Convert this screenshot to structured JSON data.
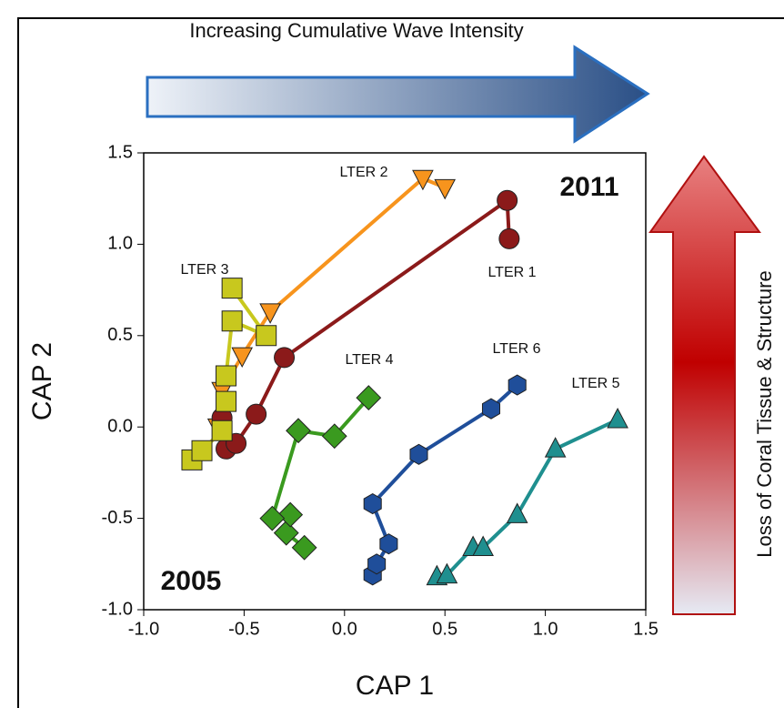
{
  "chart_data": {
    "type": "line",
    "xlabel": "CAP 1",
    "ylabel": "CAP 2",
    "annotations": [
      "Increasing Cumulative Wave Intensity",
      "Loss of Coral Tissue & Structure",
      "2011",
      "2005"
    ],
    "xlim": [
      -1.0,
      1.5
    ],
    "ylim": [
      -1.0,
      1.5
    ],
    "xticks": [
      {
        "value": -1.0,
        "label": "-1.0"
      },
      -0.5,
      {
        "value": 0.0,
        "label": "0.0"
      },
      0.5,
      {
        "value": 1.0,
        "label": "1.0"
      },
      1.5
    ],
    "yticks": [
      {
        "value": -1.0,
        "label": "-1.0"
      },
      -0.5,
      {
        "value": 0.0,
        "label": "0.0"
      },
      0.5,
      {
        "value": 1.0,
        "label": "1.0"
      },
      1.5
    ],
    "series": [
      {
        "name": "LTER 2",
        "color": "#f7941d",
        "marker": "triangle-down",
        "x": [
          -0.63,
          -0.61,
          -0.51,
          -0.37,
          0.39,
          0.5
        ],
        "y": [
          0.0,
          0.2,
          0.39,
          0.63,
          1.36,
          1.31
        ]
      },
      {
        "name": "LTER 1",
        "color": "#8b1a1a",
        "marker": "circle",
        "x": [
          -0.61,
          -0.59,
          -0.54,
          -0.44,
          -0.3,
          0.81,
          0.82
        ],
        "y": [
          0.05,
          -0.12,
          -0.09,
          0.07,
          0.38,
          1.24,
          1.03
        ]
      },
      {
        "name": "LTER 3",
        "color": "#c8c81e",
        "marker": "square",
        "x": [
          -0.76,
          -0.71,
          -0.61,
          -0.59,
          -0.59,
          -0.56,
          -0.39,
          -0.56
        ],
        "y": [
          -0.18,
          -0.13,
          -0.02,
          0.14,
          0.28,
          0.58,
          0.5,
          0.76
        ]
      },
      {
        "name": "LTER 4",
        "color": "#3a9a1f",
        "marker": "diamond",
        "x": [
          -0.2,
          -0.29,
          -0.27,
          -0.36,
          -0.23,
          -0.05,
          0.12
        ],
        "y": [
          -0.66,
          -0.58,
          -0.48,
          -0.5,
          -0.02,
          -0.05,
          0.16
        ]
      },
      {
        "name": "LTER 6",
        "color": "#1f4e9a",
        "marker": "hexagon",
        "x": [
          0.14,
          0.16,
          0.22,
          0.14,
          0.37,
          0.73,
          0.86
        ],
        "y": [
          -0.81,
          -0.75,
          -0.64,
          -0.42,
          -0.15,
          0.1,
          0.23
        ]
      },
      {
        "name": "LTER 5",
        "color": "#1f8f8f",
        "marker": "triangle-up",
        "x": [
          0.46,
          0.51,
          0.64,
          0.69,
          0.86,
          1.05,
          1.36
        ],
        "y": [
          -0.82,
          -0.81,
          -0.66,
          -0.66,
          -0.48,
          -0.12,
          0.04
        ]
      }
    ]
  }
}
